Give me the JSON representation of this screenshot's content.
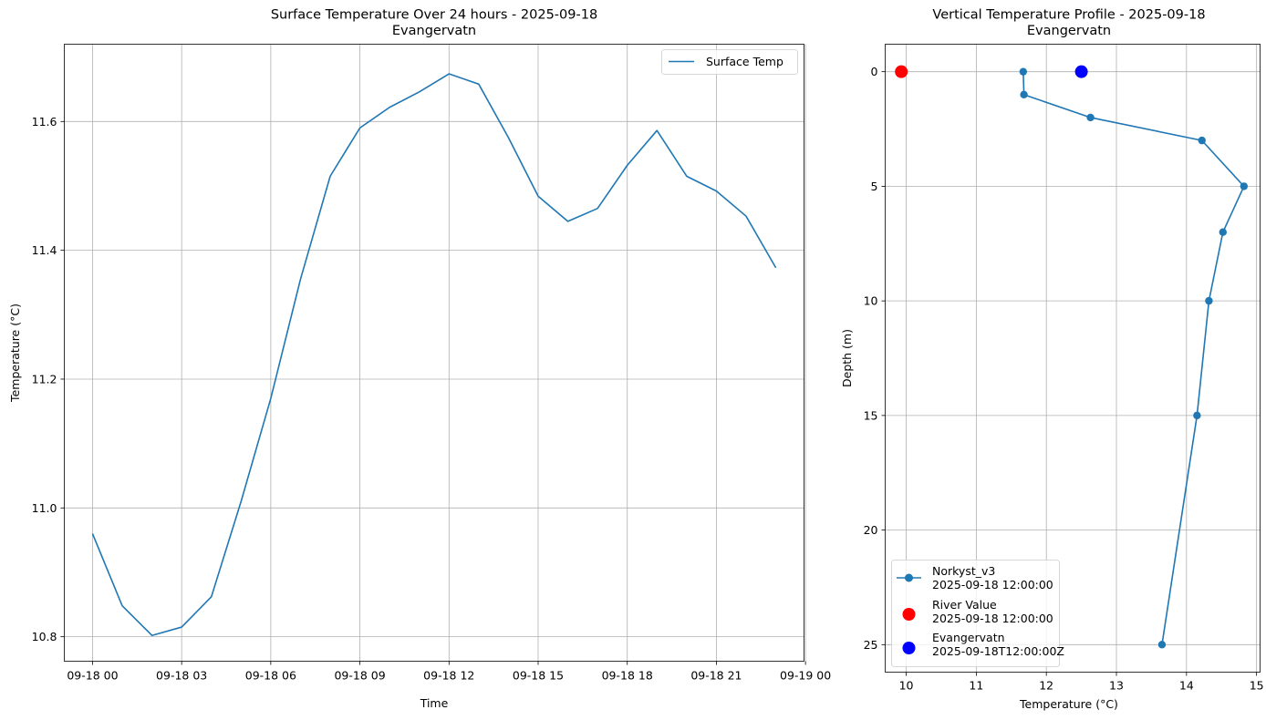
{
  "chart_data": [
    {
      "type": "line",
      "title": "Surface Temperature Over 24 hours - 2025-09-18",
      "subtitle": "Evangervatn",
      "xlabel": "Time",
      "ylabel": "Temperature (°C)",
      "xlim": [
        -0.95,
        23.95
      ],
      "ylim": [
        10.762,
        11.72
      ],
      "x_ticks": [
        0,
        3,
        6,
        9,
        12,
        15,
        18,
        21,
        24
      ],
      "x_tick_labels": [
        "09-18 00",
        "09-18 03",
        "09-18 06",
        "09-18 09",
        "09-18 12",
        "09-18 15",
        "09-18 18",
        "09-18 21",
        "09-19 00"
      ],
      "y_ticks": [
        10.8,
        11.0,
        11.2,
        11.4,
        11.6
      ],
      "y_tick_labels": [
        "10.8",
        "11.0",
        "11.2",
        "11.4",
        "11.6"
      ],
      "grid": true,
      "legend": "top-right",
      "series": [
        {
          "name": "Surface Temp",
          "color": "#1f77b4",
          "x": [
            0,
            1,
            2,
            3,
            4,
            5,
            6,
            7,
            8,
            9,
            10,
            11,
            12,
            13,
            14,
            15,
            16,
            17,
            18,
            19,
            20,
            21,
            22,
            23
          ],
          "values": [
            10.96,
            10.848,
            10.802,
            10.815,
            10.862,
            11.01,
            11.17,
            11.355,
            11.515,
            11.59,
            11.622,
            11.646,
            11.674,
            11.658,
            11.575,
            11.484,
            11.445,
            11.465,
            11.532,
            11.586,
            11.515,
            11.492,
            11.453,
            11.373
          ]
        }
      ]
    },
    {
      "type": "line",
      "title": "Vertical Temperature Profile - 2025-09-18",
      "subtitle": "Evangervatn",
      "xlabel": "Temperature (°C)",
      "ylabel": "Depth (m)",
      "xlim": [
        9.7,
        15.05
      ],
      "ylim": [
        26.2,
        -1.2
      ],
      "y_inverted": true,
      "x_ticks": [
        10,
        11,
        12,
        13,
        14,
        15
      ],
      "x_tick_labels": [
        "10",
        "11",
        "12",
        "13",
        "14",
        "15"
      ],
      "y_ticks": [
        0,
        5,
        10,
        15,
        20,
        25
      ],
      "y_tick_labels": [
        "0",
        "5",
        "10",
        "15",
        "20",
        "25"
      ],
      "grid": true,
      "legend": "bottom-left",
      "series": [
        {
          "name": "Norkyst_v3",
          "name_line2": "2025-09-18 12:00:00",
          "color": "#1f77b4",
          "marker": "o",
          "temperature": [
            11.67,
            11.68,
            12.63,
            14.22,
            14.82,
            14.52,
            14.32,
            14.15,
            13.65
          ],
          "depth": [
            0,
            1,
            2,
            3,
            5,
            7,
            10,
            15,
            25
          ]
        },
        {
          "name": "River Value",
          "name_line2": "2025-09-18 12:00:00",
          "color": "#ff0000",
          "marker": "big-dot",
          "temperature": [
            9.93
          ],
          "depth": [
            0
          ]
        },
        {
          "name": "Evangervatn",
          "name_line2": "2025-09-18T12:00:00Z",
          "color": "#0000ff",
          "marker": "big-dot",
          "temperature": [
            12.5
          ],
          "depth": [
            0
          ]
        }
      ]
    }
  ]
}
